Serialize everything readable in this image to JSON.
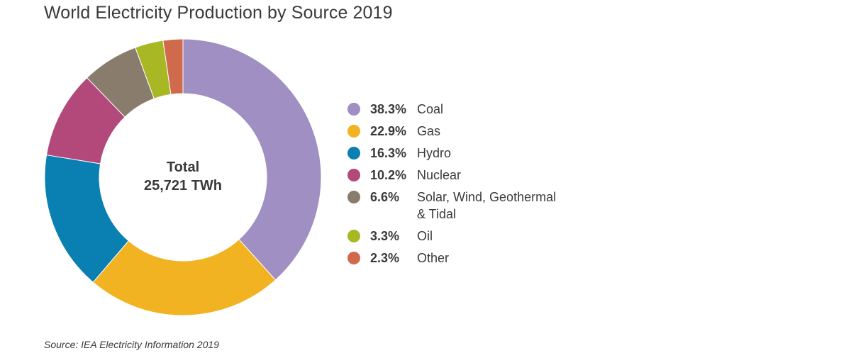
{
  "chart_data": {
    "type": "pie",
    "variant": "donut",
    "title": "World Electricity Production by Source 2019",
    "center_label": {
      "line1": "Total",
      "line2": "25,721 TWh"
    },
    "categories": [
      "Coal",
      "Gas",
      "Hydro",
      "Nuclear",
      "Solar, Wind, Geothermal & Tidal",
      "Oil",
      "Other"
    ],
    "values": [
      38.3,
      22.9,
      16.3,
      10.2,
      6.6,
      3.3,
      2.3
    ],
    "value_labels": [
      "38.3%",
      "22.9%",
      "16.3%",
      "10.2%",
      "6.6%",
      "3.3%",
      "2.3%"
    ],
    "colors": [
      "#a08fc2",
      "#f2b322",
      "#0a7fb1",
      "#b2497a",
      "#8a7c6c",
      "#a8b825",
      "#d06a4c"
    ],
    "legend_placement": "right",
    "source": "Source: IEA Electricity Information 2019"
  }
}
